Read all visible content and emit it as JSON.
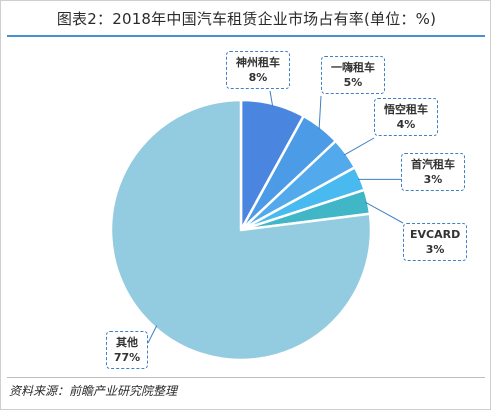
{
  "title": "图表2：2018年中国汽车租赁企业市场占有率(单位：%)",
  "source": "资料来源：前瞻产业研究院整理",
  "chart_data": {
    "type": "pie",
    "title": "图表2：2018年中国汽车租赁企业市场占有率(单位：%)",
    "unit": "%",
    "slices": [
      {
        "label": "神州租车",
        "value": 8,
        "value_label": "8%",
        "color": "#4a86e0"
      },
      {
        "label": "一嗨租车",
        "value": 5,
        "value_label": "5%",
        "color": "#4b9be6"
      },
      {
        "label": "悟空租车",
        "value": 4,
        "value_label": "4%",
        "color": "#52a9ec"
      },
      {
        "label": "首汽租车",
        "value": 3,
        "value_label": "3%",
        "color": "#49baf0"
      },
      {
        "label": "EVCARD",
        "value": 3,
        "value_label": "3%",
        "color": "#41b6c6"
      },
      {
        "label": "其他",
        "value": 77,
        "value_label": "77%",
        "color": "#93cbe0"
      }
    ]
  }
}
